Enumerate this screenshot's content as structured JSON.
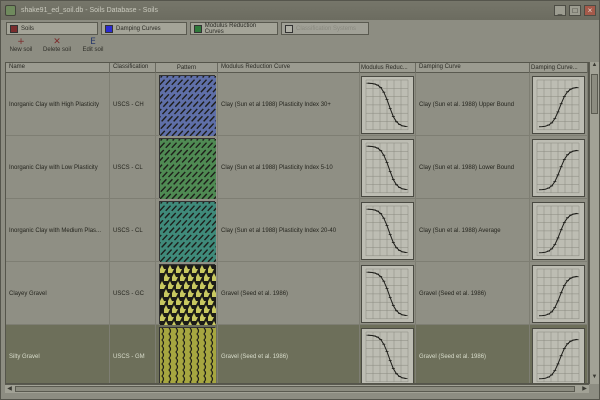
{
  "window": {
    "title": "shake91_ed_soil.db - Soils Database - Soils",
    "minimize_label": "_",
    "maximize_label": "□",
    "close_label": "×"
  },
  "tabs": [
    {
      "label": "Soils",
      "color": "#7a2d2d"
    },
    {
      "label": "Damping Curves",
      "color": "#2a2ad0"
    },
    {
      "label": "Modulus Reduction Curves",
      "color": "#2e7a3a"
    },
    {
      "label": "Classification Systems",
      "color": "#b0b0a6"
    }
  ],
  "toolbar": {
    "new_icon": "+",
    "new_label": "New soil",
    "delete_icon": "✕",
    "delete_label": "Delete soil",
    "edit_icon": "E",
    "edit_label": "Edit soil"
  },
  "columns": [
    "Name",
    "Classification",
    "Pattern",
    "Modulus Reduction Curve",
    "Modulus Reduc...",
    "Damping Curve",
    "Damping Curve..."
  ],
  "rows": [
    {
      "name": "Inorganic Clay with High Plasticity",
      "classification": "USCS - CH",
      "pattern": "blue-diagonal",
      "pattern_color": "#5f6fa8",
      "mrc": "Clay (Sun et al 1988) Plasticity Index 30+",
      "dc": "Clay (Sun et al. 1988) Upper Bound"
    },
    {
      "name": "Inorganic Clay with Low Plasticity",
      "classification": "USCS - CL",
      "pattern": "green-diagonal",
      "pattern_color": "#4f8a53",
      "mrc": "Clay (Sun et al 1988) Plasticity Index 5-10",
      "dc": "Clay (Sun et al. 1988) Lower Bound"
    },
    {
      "name": "Inorganic Clay with Medium Plas...",
      "classification": "USCS - CL",
      "pattern": "teal-diagonal",
      "pattern_color": "#3f8a7a",
      "mrc": "Clay (Sun et al 1988) Plasticity Index 20-40",
      "dc": "Clay (Sun et al. 1988) Average"
    },
    {
      "name": "Clayey Gravel",
      "classification": "USCS - GC",
      "pattern": "black-yellow-houndstooth",
      "pattern_color": "#c8c860",
      "mrc": "Gravel (Seed et al. 1986)",
      "dc": "Gravel (Seed et al. 1986)"
    },
    {
      "name": "Silty Gravel",
      "classification": "USCS - GM",
      "pattern": "olive-wavy",
      "pattern_color": "#a6a640",
      "mrc": "Gravel (Seed et al. 1986)",
      "dc": "Gravel (Seed et al. 1986)"
    }
  ],
  "scroll": {
    "up": "▲",
    "down": "▼",
    "left": "◀",
    "right": "▶"
  }
}
